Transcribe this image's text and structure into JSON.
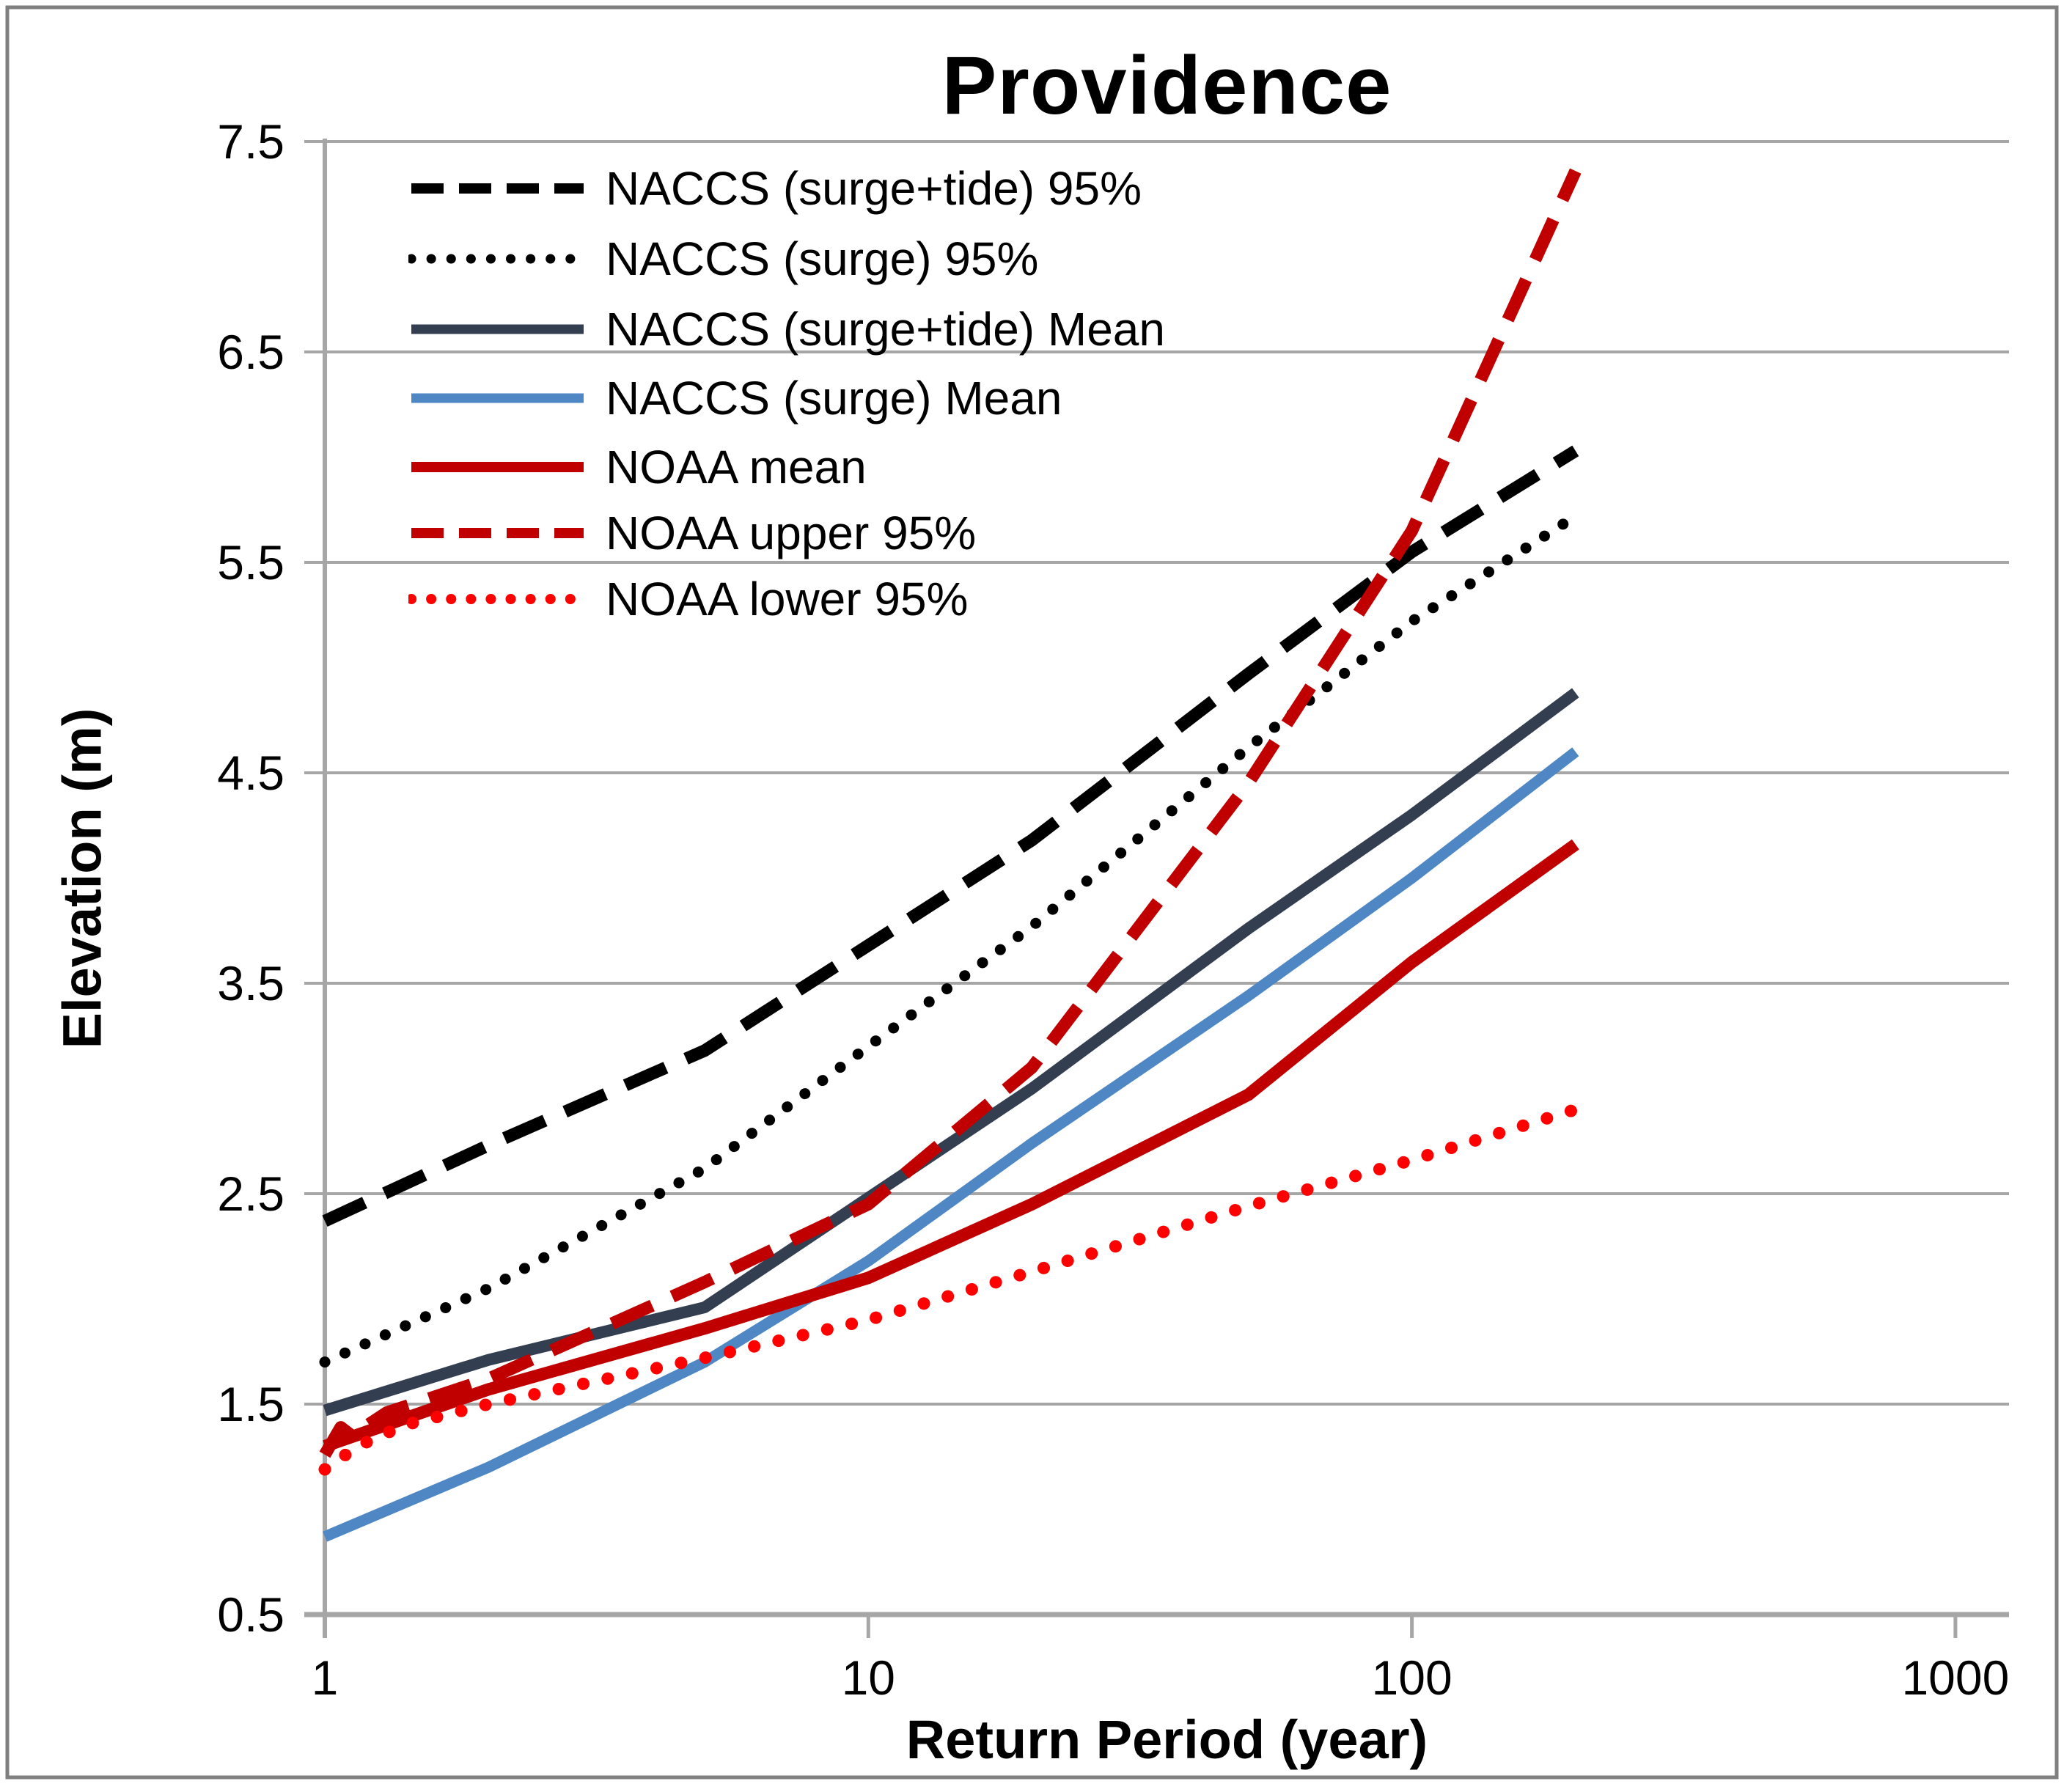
{
  "title": "Providence",
  "axes": {
    "x": {
      "label": "Return Period (year)",
      "scale": "log",
      "range": [
        1,
        1000
      ],
      "ticks": [
        {
          "label": "1",
          "value": 1
        },
        {
          "label": "10",
          "value": 10
        },
        {
          "label": "100",
          "value": 100
        },
        {
          "label": "1000",
          "value": 1000
        }
      ]
    },
    "y": {
      "label": "Elevation (m)",
      "range": [
        0.5,
        7.5
      ],
      "ticks": [
        {
          "label": "0.5",
          "value": 0.5
        },
        {
          "label": "1.5",
          "value": 1.5
        },
        {
          "label": "2.5",
          "value": 2.5
        },
        {
          "label": "3.5",
          "value": 3.5
        },
        {
          "label": "4.5",
          "value": 4.5
        },
        {
          "label": "5.5",
          "value": 5.5
        },
        {
          "label": "6.5",
          "value": 6.5
        },
        {
          "label": "7.5",
          "value": 7.5
        }
      ]
    }
  },
  "colors": {
    "black": "#000000",
    "navy": "#333F50",
    "blue": "#4E87C3",
    "dark_red": "#C00000",
    "bright_red": "#FF0000",
    "gridline": "#A6A6A6",
    "axis_line": "#A6A6A6",
    "border": "#7F7F7F",
    "background": "#FFFFFF"
  },
  "chart_data": {
    "type": "line",
    "title": "Providence",
    "xlabel": "Return Period (year)",
    "ylabel": "Elevation (m)",
    "x_scale": "log",
    "xlim": [
      1,
      1000
    ],
    "ylim": [
      0.5,
      7.5
    ],
    "grid": "horizontal",
    "legend_position": "top-left-inside",
    "series": [
      {
        "name": "NACCS (surge+tide) 95%",
        "color": "#000000",
        "style": "dashed",
        "width": 17,
        "points": [
          [
            1,
            2.37
          ],
          [
            2,
            2.73
          ],
          [
            5,
            3.18
          ],
          [
            10,
            3.68
          ],
          [
            20,
            4.18
          ],
          [
            50,
            4.97
          ],
          [
            100,
            5.55
          ],
          [
            200,
            6.03
          ]
        ]
      },
      {
        "name": "NACCS (surge) 95%",
        "color": "#000000",
        "style": "dotted",
        "width": 15,
        "points": [
          [
            1,
            1.7
          ],
          [
            2,
            2.05
          ],
          [
            5,
            2.62
          ],
          [
            10,
            3.2
          ],
          [
            20,
            3.77
          ],
          [
            50,
            4.62
          ],
          [
            100,
            5.22
          ],
          [
            200,
            5.72
          ]
        ]
      },
      {
        "name": "NACCS (surge+tide) Mean",
        "color": "#333F50",
        "style": "solid",
        "width": 16,
        "points": [
          [
            1,
            1.47
          ],
          [
            2,
            1.71
          ],
          [
            5,
            1.96
          ],
          [
            10,
            2.48
          ],
          [
            20,
            3.0
          ],
          [
            50,
            3.76
          ],
          [
            100,
            4.3
          ],
          [
            200,
            4.88
          ]
        ]
      },
      {
        "name": "NACCS (surge) Mean",
        "color": "#4E87C3",
        "style": "solid",
        "width": 15,
        "points": [
          [
            1,
            0.87
          ],
          [
            2,
            1.2
          ],
          [
            5,
            1.7
          ],
          [
            10,
            2.18
          ],
          [
            20,
            2.74
          ],
          [
            50,
            3.44
          ],
          [
            100,
            4.0
          ],
          [
            200,
            4.6
          ]
        ]
      },
      {
        "name": "NOAA mean",
        "color": "#C00000",
        "style": "solid",
        "width": 17,
        "points": [
          [
            1,
            1.3
          ],
          [
            2,
            1.57
          ],
          [
            5,
            1.86
          ],
          [
            10,
            2.1
          ],
          [
            20,
            2.45
          ],
          [
            50,
            2.97
          ],
          [
            100,
            3.6
          ],
          [
            200,
            4.16
          ]
        ]
      },
      {
        "name": "NOAA upper 95%",
        "color": "#C00000",
        "style": "dashed",
        "width": 17,
        "points": [
          [
            1,
            1.26
          ],
          [
            1.07,
            1.39
          ],
          [
            1.12,
            1.35
          ],
          [
            1.3,
            1.46
          ],
          [
            2,
            1.62
          ],
          [
            5,
            2.08
          ],
          [
            10,
            2.45
          ],
          [
            20,
            3.1
          ],
          [
            50,
            4.45
          ],
          [
            100,
            5.65
          ],
          [
            200,
            7.36
          ]
        ]
      },
      {
        "name": "NOAA lower 95%",
        "color": "#FF0000",
        "style": "dotted",
        "width": 17,
        "points": [
          [
            1,
            1.19
          ],
          [
            1.15,
            1.3
          ],
          [
            1.4,
            1.4
          ],
          [
            2,
            1.5
          ],
          [
            5,
            1.72
          ],
          [
            10,
            1.9
          ],
          [
            20,
            2.13
          ],
          [
            50,
            2.44
          ],
          [
            100,
            2.66
          ],
          [
            200,
            2.9
          ]
        ]
      }
    ]
  }
}
